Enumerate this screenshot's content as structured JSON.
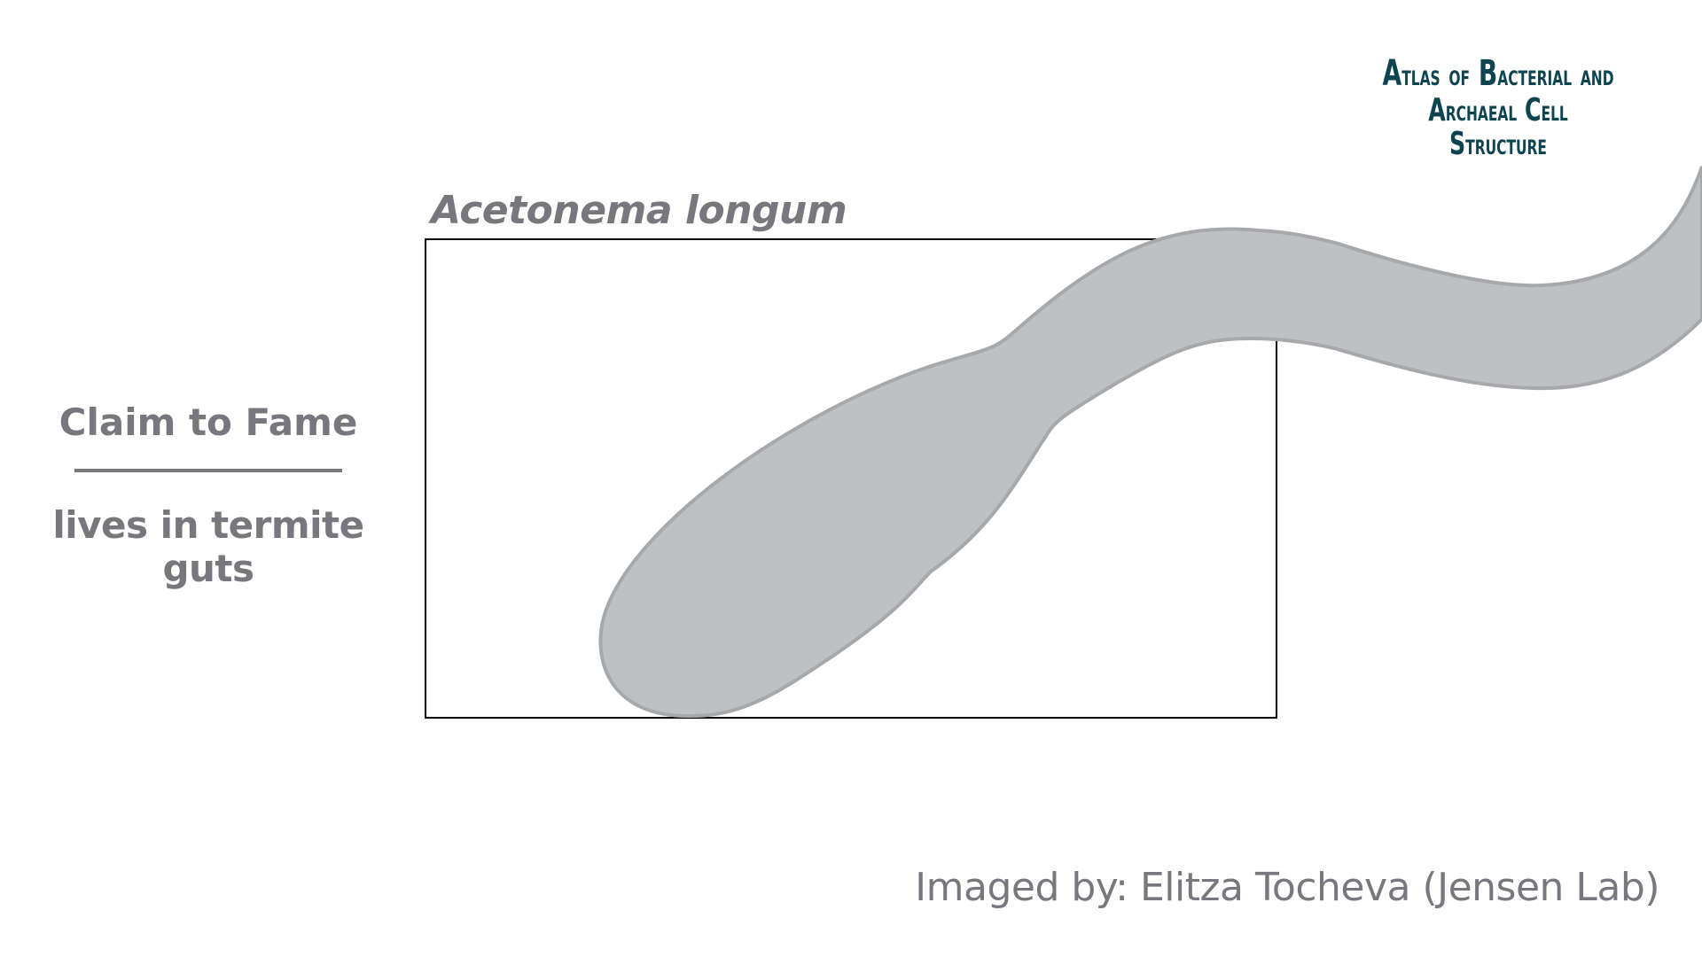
{
  "logo": {
    "line1_a": "A",
    "line1_b": "TLAS",
    "line1_of": "OF",
    "line1_c": "B",
    "line1_d": "ACTERIAL",
    "line1_and": "AND",
    "line2_a": "A",
    "line2_b": "RCHAEAL",
    "line2_c": "C",
    "line2_d": "ELL",
    "line2_e": "S",
    "line2_f": "TRUCTURE"
  },
  "species": "Acetonema longum",
  "fame": {
    "heading": "Claim to Fame",
    "text": "lives in termite guts"
  },
  "credit": "Imaged by: Elitza Tocheva (Jensen Lab)",
  "colors": {
    "text_gray": "#77777d",
    "cell_fill": "#bfc0c4",
    "cell_stroke": "#a7a8ac",
    "logo_teal": "#0d4450",
    "frame": "#000000"
  }
}
